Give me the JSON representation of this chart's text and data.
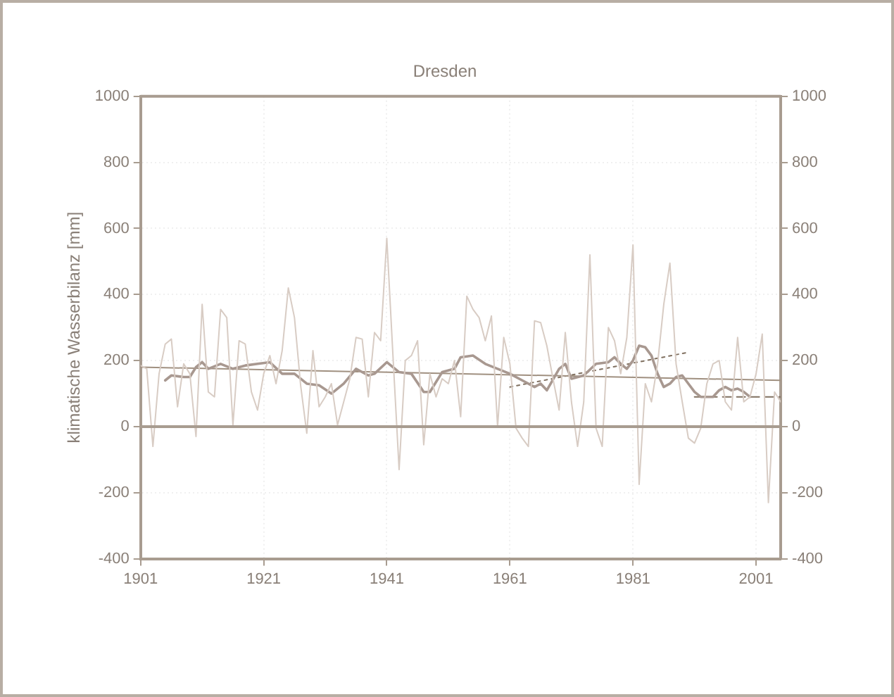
{
  "chart_data": {
    "type": "line",
    "title": "Dresden",
    "ylabel": "klimatische Wasserbilanz [mm]",
    "xlim": [
      1901,
      2005
    ],
    "xticks": [
      1901,
      1921,
      1941,
      1961,
      1981,
      2001
    ],
    "ylim": [
      -400,
      1000
    ],
    "yticks": [
      -400,
      -200,
      0,
      200,
      400,
      600,
      800,
      1000
    ],
    "y2lim": [
      -400,
      1000
    ],
    "y2ticks": [
      -400,
      -200,
      0,
      200,
      400,
      600,
      800,
      1000
    ],
    "grid": true,
    "legend": false,
    "marker": "none",
    "ref_lines": [
      {
        "axis": "y",
        "value": 0,
        "color": "#a89c90",
        "line_style": "solid"
      }
    ],
    "series": [
      {
        "color": "#d8ccc4",
        "line_style": "solid",
        "x": [
          1901,
          1902,
          1903,
          1904,
          1905,
          1906,
          1907,
          1908,
          1909,
          1910,
          1911,
          1912,
          1913,
          1914,
          1915,
          1916,
          1917,
          1918,
          1919,
          1920,
          1921,
          1922,
          1923,
          1924,
          1925,
          1926,
          1927,
          1928,
          1929,
          1930,
          1931,
          1932,
          1933,
          1934,
          1935,
          1936,
          1937,
          1938,
          1939,
          1940,
          1941,
          1942,
          1943,
          1944,
          1945,
          1946,
          1947,
          1948,
          1949,
          1950,
          1951,
          1952,
          1953,
          1954,
          1955,
          1956,
          1957,
          1958,
          1959,
          1960,
          1961,
          1962,
          1963,
          1964,
          1965,
          1966,
          1967,
          1968,
          1969,
          1970,
          1971,
          1972,
          1973,
          1974,
          1975,
          1976,
          1977,
          1978,
          1979,
          1980,
          1981,
          1982,
          1983,
          1984,
          1985,
          1986,
          1987,
          1988,
          1989,
          1990,
          1991,
          1992,
          1993,
          1994,
          1995,
          1996,
          1997,
          1998,
          1999,
          2000,
          2001,
          2002,
          2003,
          2004,
          2005
        ],
        "values": [
          185,
          175,
          -60,
          160,
          250,
          265,
          60,
          190,
          160,
          -30,
          370,
          105,
          90,
          355,
          330,
          5,
          260,
          250,
          105,
          50,
          160,
          215,
          130,
          230,
          420,
          330,
          125,
          -20,
          230,
          60,
          90,
          130,
          5,
          75,
          145,
          270,
          265,
          90,
          285,
          260,
          570,
          215,
          -130,
          200,
          215,
          260,
          -55,
          160,
          90,
          145,
          130,
          200,
          30,
          395,
          355,
          330,
          260,
          335,
          0,
          270,
          190,
          -5,
          -35,
          -60,
          320,
          315,
          245,
          145,
          50,
          285,
          75,
          -60,
          75,
          520,
          -5,
          -60,
          300,
          260,
          160,
          270,
          550,
          -175,
          130,
          75,
          190,
          370,
          495,
          190,
          75,
          -35,
          -50,
          -5,
          130,
          190,
          200,
          75,
          50,
          270,
          75,
          90,
          160,
          280,
          -230,
          105,
          75
        ]
      },
      {
        "color": "#a89890",
        "line_style": "solid",
        "x": [
          1905,
          1906,
          1908,
          1909,
          1910,
          1911,
          1912,
          1914,
          1916,
          1918,
          1920,
          1922,
          1924,
          1926,
          1928,
          1930,
          1932,
          1934,
          1936,
          1938,
          1939,
          1941,
          1943,
          1945,
          1947,
          1948,
          1950,
          1952,
          1953,
          1955,
          1957,
          1959,
          1961,
          1963,
          1965,
          1966,
          1967,
          1969,
          1970,
          1971,
          1973,
          1975,
          1977,
          1978,
          1979,
          1980,
          1981,
          1982,
          1983,
          1984,
          1985,
          1986,
          1987,
          1988,
          1989,
          1990,
          1991,
          1992,
          1993,
          1994,
          1995,
          1996,
          1997,
          1998,
          1999,
          2000
        ],
        "values": [
          140,
          155,
          150,
          150,
          180,
          195,
          175,
          190,
          175,
          185,
          190,
          195,
          160,
          160,
          130,
          125,
          100,
          130,
          175,
          155,
          160,
          195,
          165,
          160,
          105,
          105,
          165,
          175,
          210,
          215,
          190,
          175,
          160,
          140,
          120,
          130,
          110,
          175,
          190,
          145,
          155,
          190,
          195,
          210,
          190,
          175,
          200,
          245,
          240,
          215,
          160,
          120,
          130,
          150,
          155,
          130,
          105,
          90,
          90,
          90,
          110,
          120,
          110,
          115,
          105,
          90
        ]
      },
      {
        "color": "#a09080",
        "line_style": "solid",
        "x": [
          1901,
          2005
        ],
        "values": [
          180,
          140
        ]
      },
      {
        "color": "#807060",
        "line_style": "dotted",
        "x": [
          1961,
          1990
        ],
        "values": [
          120,
          225
        ]
      },
      {
        "color": "#807060",
        "line_style": "dashed",
        "x": [
          1991,
          2005
        ],
        "values": [
          90,
          90
        ]
      }
    ]
  }
}
